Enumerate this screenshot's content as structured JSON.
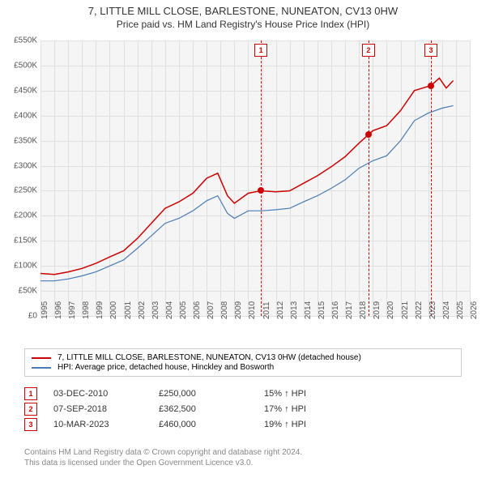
{
  "title_line1": "7, LITTLE MILL CLOSE, BARLESTONE, NUNEATON, CV13 0HW",
  "title_line2": "Price paid vs. HM Land Registry's House Price Index (HPI)",
  "chart": {
    "type": "line",
    "background_color": "#f5f5f5",
    "grid_color": "#e0e0e0",
    "x": {
      "min": 1995,
      "max": 2026,
      "ticks": [
        1995,
        1996,
        1997,
        1998,
        1999,
        2000,
        2001,
        2002,
        2003,
        2004,
        2005,
        2006,
        2007,
        2008,
        2009,
        2010,
        2011,
        2012,
        2013,
        2014,
        2015,
        2016,
        2017,
        2018,
        2019,
        2020,
        2021,
        2022,
        2023,
        2024,
        2025,
        2026
      ]
    },
    "y": {
      "min": 0,
      "max": 550000,
      "tick_step": 50000,
      "ticks": [
        "£0",
        "£50K",
        "£100K",
        "£150K",
        "£200K",
        "£250K",
        "£300K",
        "£350K",
        "£400K",
        "£450K",
        "£500K",
        "£550K"
      ]
    },
    "series": [
      {
        "name": "price_paid",
        "color": "#cc0000",
        "line_width": 1.5,
        "points": [
          [
            1995,
            85000
          ],
          [
            1996,
            83000
          ],
          [
            1997,
            88000
          ],
          [
            1998,
            95000
          ],
          [
            1999,
            105000
          ],
          [
            2000,
            118000
          ],
          [
            2001,
            130000
          ],
          [
            2002,
            155000
          ],
          [
            2003,
            185000
          ],
          [
            2004,
            215000
          ],
          [
            2005,
            228000
          ],
          [
            2006,
            245000
          ],
          [
            2007,
            275000
          ],
          [
            2007.8,
            285000
          ],
          [
            2008.5,
            240000
          ],
          [
            2009,
            225000
          ],
          [
            2010,
            245000
          ],
          [
            2010.9,
            250000
          ],
          [
            2012,
            248000
          ],
          [
            2013,
            250000
          ],
          [
            2014,
            265000
          ],
          [
            2015,
            280000
          ],
          [
            2016,
            298000
          ],
          [
            2017,
            318000
          ],
          [
            2018,
            345000
          ],
          [
            2018.7,
            362500
          ],
          [
            2019,
            370000
          ],
          [
            2020,
            380000
          ],
          [
            2021,
            410000
          ],
          [
            2022,
            450000
          ],
          [
            2023.2,
            460000
          ],
          [
            2023.8,
            475000
          ],
          [
            2024.3,
            455000
          ],
          [
            2024.8,
            470000
          ]
        ]
      },
      {
        "name": "hpi",
        "color": "#4a7bb5",
        "line_width": 1.2,
        "points": [
          [
            1995,
            70000
          ],
          [
            1996,
            70000
          ],
          [
            1997,
            74000
          ],
          [
            1998,
            80000
          ],
          [
            1999,
            88000
          ],
          [
            2000,
            100000
          ],
          [
            2001,
            112000
          ],
          [
            2002,
            135000
          ],
          [
            2003,
            160000
          ],
          [
            2004,
            185000
          ],
          [
            2005,
            195000
          ],
          [
            2006,
            210000
          ],
          [
            2007,
            230000
          ],
          [
            2007.8,
            240000
          ],
          [
            2008.5,
            205000
          ],
          [
            2009,
            195000
          ],
          [
            2010,
            210000
          ],
          [
            2011,
            210000
          ],
          [
            2012,
            212000
          ],
          [
            2013,
            215000
          ],
          [
            2014,
            228000
          ],
          [
            2015,
            240000
          ],
          [
            2016,
            255000
          ],
          [
            2017,
            272000
          ],
          [
            2018,
            295000
          ],
          [
            2019,
            310000
          ],
          [
            2020,
            320000
          ],
          [
            2021,
            350000
          ],
          [
            2022,
            390000
          ],
          [
            2023,
            405000
          ],
          [
            2024,
            415000
          ],
          [
            2024.8,
            420000
          ]
        ]
      }
    ],
    "markers": [
      {
        "num": "1",
        "x": 2010.92,
        "y": 250000
      },
      {
        "num": "2",
        "x": 2018.68,
        "y": 362500
      },
      {
        "num": "3",
        "x": 2023.19,
        "y": 460000
      }
    ]
  },
  "legend": {
    "items": [
      {
        "color": "#cc0000",
        "label": "7, LITTLE MILL CLOSE, BARLESTONE, NUNEATON, CV13 0HW (detached house)"
      },
      {
        "color": "#4a7bb5",
        "label": "HPI: Average price, detached house, Hinckley and Bosworth"
      }
    ]
  },
  "sales": [
    {
      "num": "1",
      "date": "03-DEC-2010",
      "price": "£250,000",
      "delta": "15% ↑ HPI"
    },
    {
      "num": "2",
      "date": "07-SEP-2018",
      "price": "£362,500",
      "delta": "17% ↑ HPI"
    },
    {
      "num": "3",
      "date": "10-MAR-2023",
      "price": "£460,000",
      "delta": "19% ↑ HPI"
    }
  ],
  "footer": {
    "line1": "Contains HM Land Registry data © Crown copyright and database right 2024.",
    "line2": "This data is licensed under the Open Government Licence v3.0."
  }
}
